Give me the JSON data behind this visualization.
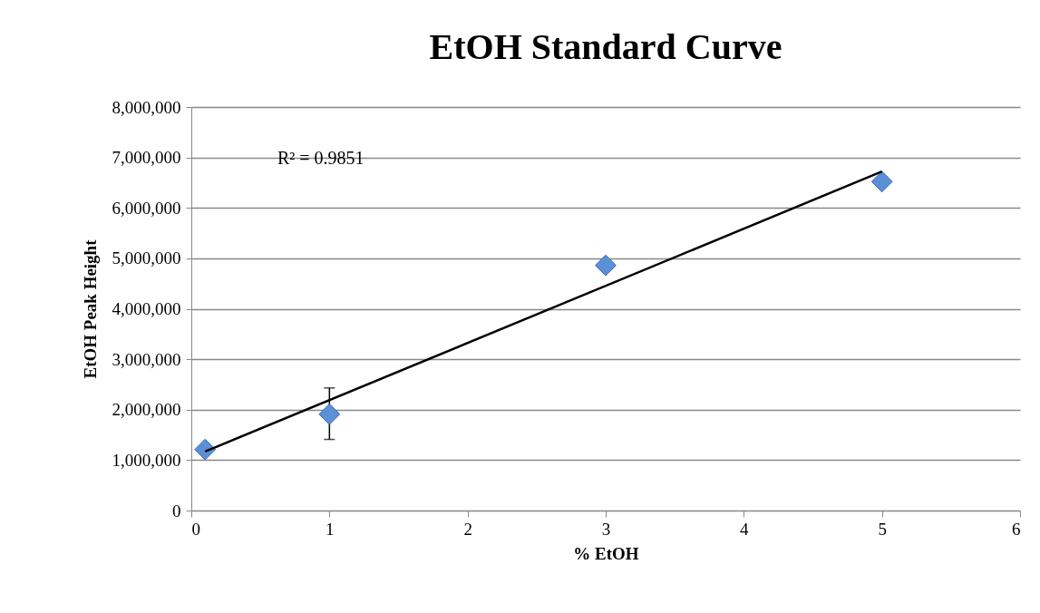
{
  "chart_data": {
    "type": "scatter",
    "title": "EtOH Standard Curve",
    "xlabel": "% EtOH",
    "ylabel": "EtOH Peak Height",
    "annotations": [
      "R² = 0.9851"
    ],
    "xlim": [
      0,
      6
    ],
    "xticks": [
      0,
      1,
      2,
      3,
      4,
      5,
      6
    ],
    "ylim": [
      0,
      8000000
    ],
    "yticks": [
      0,
      {
        "value": 1000000,
        "label": "1,000,000"
      },
      {
        "value": 2000000,
        "label": "2,000,000"
      },
      {
        "value": 3000000,
        "label": "3,000,000"
      },
      {
        "value": 4000000,
        "label": "4,000,000"
      },
      {
        "value": 5000000,
        "label": "5,000,000"
      },
      {
        "value": 6000000,
        "label": "6,000,000"
      },
      {
        "value": 7000000,
        "label": "7,000,000"
      },
      {
        "value": 8000000,
        "label": "8,000,000"
      }
    ],
    "grid": "y",
    "series": [
      {
        "color": "#5b8fd6",
        "marker": "diamond",
        "x": [
          0.1,
          1,
          3,
          5
        ],
        "values": [
          1210000,
          1910000,
          4860000,
          6520000
        ],
        "errors": [
          null,
          [
            1410000,
            2430000
          ],
          null,
          null
        ]
      },
      {
        "type": "line",
        "marker": "none",
        "color": "#000000",
        "x": [
          0.1,
          5
        ],
        "values": [
          1170000,
          6720000
        ]
      }
    ]
  }
}
